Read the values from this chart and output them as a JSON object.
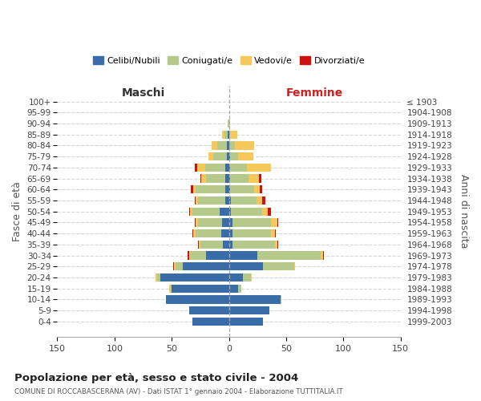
{
  "age_groups": [
    "0-4",
    "5-9",
    "10-14",
    "15-19",
    "20-24",
    "25-29",
    "30-34",
    "35-39",
    "40-44",
    "45-49",
    "50-54",
    "55-59",
    "60-64",
    "65-69",
    "70-74",
    "75-79",
    "80-84",
    "85-89",
    "90-94",
    "95-99",
    "100+"
  ],
  "birth_years": [
    "1999-2003",
    "1994-1998",
    "1989-1993",
    "1984-1988",
    "1979-1983",
    "1974-1978",
    "1969-1973",
    "1964-1968",
    "1959-1963",
    "1954-1958",
    "1949-1953",
    "1944-1948",
    "1939-1943",
    "1934-1938",
    "1929-1933",
    "1924-1928",
    "1919-1923",
    "1914-1918",
    "1909-1913",
    "1904-1908",
    "≤ 1903"
  ],
  "maschi_celibi": [
    32,
    35,
    55,
    50,
    60,
    40,
    20,
    5,
    7,
    6,
    8,
    3,
    3,
    3,
    3,
    2,
    2,
    1,
    0,
    0,
    0
  ],
  "maschi_coniugati": [
    0,
    0,
    0,
    1,
    3,
    7,
    14,
    20,
    22,
    21,
    24,
    24,
    26,
    17,
    18,
    12,
    8,
    3,
    1,
    0,
    0
  ],
  "maschi_vedovi": [
    0,
    0,
    0,
    1,
    1,
    1,
    1,
    1,
    2,
    2,
    2,
    2,
    2,
    4,
    7,
    4,
    5,
    2,
    0,
    0,
    0
  ],
  "maschi_divorziati": [
    0,
    0,
    0,
    0,
    0,
    1,
    1,
    1,
    1,
    1,
    1,
    1,
    2,
    1,
    2,
    0,
    0,
    0,
    0,
    0,
    0
  ],
  "femmine_nubili": [
    30,
    35,
    45,
    8,
    12,
    30,
    25,
    3,
    3,
    3,
    2,
    2,
    1,
    1,
    1,
    1,
    0,
    0,
    0,
    0,
    0
  ],
  "femmine_coniugate": [
    0,
    0,
    1,
    3,
    7,
    27,
    55,
    37,
    34,
    34,
    27,
    22,
    21,
    16,
    15,
    7,
    5,
    1,
    0,
    0,
    0
  ],
  "femmine_vedove": [
    0,
    0,
    0,
    0,
    1,
    1,
    2,
    2,
    3,
    5,
    5,
    5,
    5,
    9,
    21,
    13,
    17,
    6,
    1,
    0,
    0
  ],
  "femmine_divorziate": [
    0,
    0,
    0,
    0,
    0,
    0,
    1,
    1,
    1,
    1,
    3,
    3,
    2,
    2,
    0,
    0,
    0,
    0,
    0,
    0,
    0
  ],
  "color_celibi": "#3a6da8",
  "color_coniugati": "#b5c98a",
  "color_vedovi": "#f5c85c",
  "color_divorziati": "#cc1111",
  "xlim": 150,
  "title": "Popolazione per età, sesso e stato civile - 2004",
  "subtitle": "COMUNE DI ROCCABASCERANA (AV) - Dati ISTAT 1° gennaio 2004 - Elaborazione TUTTITALIA.IT",
  "ylabel_left": "Fasce di età",
  "ylabel_right": "Anni di nascita",
  "label_maschi": "Maschi",
  "label_femmine": "Femmine",
  "legend_celibi": "Celibi/Nubili",
  "legend_coniugati": "Coniugati/e",
  "legend_vedovi": "Vedovi/e",
  "legend_divorziati": "Divorziati/e"
}
